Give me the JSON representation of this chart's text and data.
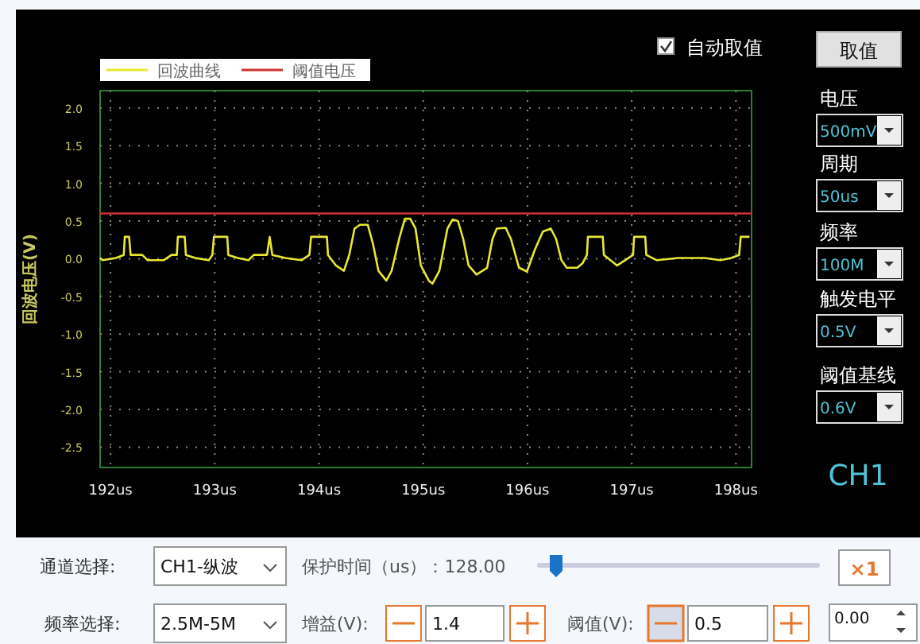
{
  "chart_data": {
    "type": "line",
    "ylabel": "回波电压(V)",
    "legend": "top left",
    "grid": true,
    "marker": "none",
    "line_style": "solid",
    "xlim": [
      191.9,
      198.15
    ],
    "ylim": [
      -2.77,
      2.23
    ],
    "xticks": [
      {
        "value": 192,
        "label": "192us"
      },
      {
        "value": 193,
        "label": "193us"
      },
      {
        "value": 194,
        "label": "194us"
      },
      {
        "value": 195,
        "label": "195us"
      },
      {
        "value": 196,
        "label": "196us"
      },
      {
        "value": 197,
        "label": "197us"
      },
      {
        "value": 198,
        "label": "198us"
      }
    ],
    "yticks": [
      {
        "value": 2,
        "label": "2.0"
      },
      {
        "value": 1.5,
        "label": "1.5"
      },
      {
        "value": 1,
        "label": "1.0"
      },
      {
        "value": 0.5,
        "label": "0.5"
      },
      {
        "value": 0,
        "label": "0.0"
      },
      {
        "value": -0.5,
        "label": "-0.5"
      },
      {
        "value": -1,
        "label": "-1.0"
      },
      {
        "value": -1.5,
        "label": "-1.5"
      },
      {
        "value": -2,
        "label": "-2.0"
      },
      {
        "value": -2.5,
        "label": "-2.5"
      }
    ],
    "series": [
      {
        "name": "回波曲线",
        "color": "#e8e830",
        "x": [
          191.9,
          191.924,
          192.051,
          192.127,
          192.137,
          192.178,
          192.193,
          192.305,
          192.356,
          192.509,
          192.585,
          192.636,
          192.646,
          192.712,
          192.723,
          192.814,
          192.942,
          192.977,
          192.992,
          193.12,
          193.13,
          193.221,
          193.323,
          193.374,
          193.501,
          193.527,
          193.552,
          193.679,
          193.832,
          193.908,
          193.924,
          194.076,
          194.086,
          194.163,
          194.239,
          194.29,
          194.341,
          194.392,
          194.468,
          194.519,
          194.57,
          194.646,
          194.697,
          194.774,
          194.824,
          194.875,
          194.926,
          194.977,
          195.053,
          195.089,
          195.155,
          195.232,
          195.282,
          195.333,
          195.384,
          195.435,
          195.511,
          195.613,
          195.664,
          195.705,
          195.791,
          195.842,
          195.919,
          195.995,
          196.071,
          196.148,
          196.224,
          196.275,
          196.326,
          196.377,
          196.478,
          196.529,
          196.57,
          196.58,
          196.723,
          196.733,
          196.86,
          196.936,
          197.013,
          197.023,
          197.13,
          197.14,
          197.242,
          197.445,
          197.7,
          197.852,
          197.954,
          198.031,
          198.046,
          198.13
        ],
        "values": [
          0.01,
          -0.02,
          0.01,
          0.05,
          0.29,
          0.29,
          0.05,
          0.05,
          -0.02,
          -0.02,
          0.05,
          0.05,
          0.29,
          0.29,
          0.05,
          0.01,
          -0.02,
          0.05,
          0.29,
          0.29,
          0.05,
          0.01,
          -0.02,
          0.05,
          0.05,
          0.29,
          0.05,
          0.01,
          -0.02,
          0.05,
          0.29,
          0.29,
          0.05,
          -0.09,
          -0.16,
          0.05,
          0.4,
          0.45,
          0.45,
          0.19,
          -0.16,
          -0.29,
          -0.16,
          0.29,
          0.53,
          0.53,
          0.4,
          -0.09,
          -0.29,
          -0.33,
          -0.16,
          0.4,
          0.52,
          0.5,
          0.26,
          -0.09,
          -0.21,
          -0.12,
          0.26,
          0.4,
          0.41,
          0.26,
          -0.12,
          -0.17,
          0.12,
          0.36,
          0.4,
          0.26,
          -0.02,
          -0.12,
          -0.12,
          -0.06,
          0.05,
          0.29,
          0.29,
          0.05,
          -0.09,
          -0.02,
          0.05,
          0.29,
          0.29,
          0.05,
          -0.02,
          0.01,
          0.01,
          -0.02,
          0.01,
          0.05,
          0.29,
          0.29
        ]
      },
      {
        "name": "阈值电压",
        "color": "#d03030",
        "x": [
          191.9,
          198.15
        ],
        "values": [
          0.6,
          0.6
        ]
      }
    ],
    "annotations": [
      "自动取值",
      "取值",
      "电压",
      "500mV",
      "周期",
      "50us",
      "频率",
      "100M",
      "触发电平",
      "0.5V",
      "阈值基线",
      "0.6V",
      "CH1",
      "通道选择:",
      "CH1-纵波",
      "保护时间（us）：128.00",
      "×1",
      "频率选择:",
      "2.5M-5M",
      "增益(V):",
      "1.4",
      "阈值(V):",
      "0.5",
      "0.00"
    ]
  }
}
